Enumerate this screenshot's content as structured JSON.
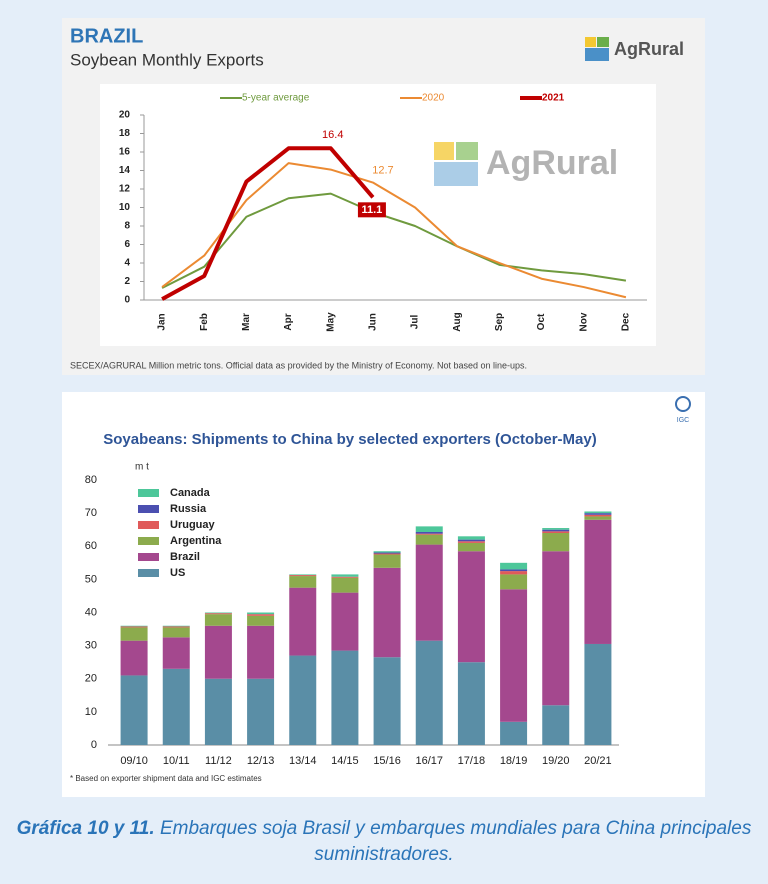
{
  "brand": "AgRural",
  "caption_label": "Gráfica 10 y 11.",
  "caption_text": "Embarques soja Brasil y embarques mundiales para China principales suministradores.",
  "chart_data": [
    {
      "type": "line",
      "title": "BRAZIL",
      "subtitle": "Soybean Monthly Exports",
      "note": "SECEX/AGRURAL  Million metric tons. Official data as provided by the Ministry of Economy. Not based on line-ups.",
      "categories": [
        "Jan",
        "Feb",
        "Mar",
        "Apr",
        "May",
        "Jun",
        "Jul",
        "Aug",
        "Sep",
        "Oct",
        "Nov",
        "Dec"
      ],
      "ylim": [
        0,
        20
      ],
      "yticks": [
        0,
        2,
        4,
        6,
        8,
        10,
        12,
        14,
        16,
        18,
        20
      ],
      "series": [
        {
          "name": "5-year average",
          "color": "#6f9a3e",
          "values": [
            1.3,
            3.6,
            9.0,
            11.0,
            11.5,
            9.5,
            8.0,
            5.8,
            3.8,
            3.2,
            2.8,
            2.1
          ],
          "labeled": []
        },
        {
          "name": "2020",
          "color": "#eb8a32",
          "values": [
            1.4,
            4.8,
            10.8,
            14.8,
            14.1,
            12.7,
            10.0,
            5.8,
            4.0,
            2.3,
            1.4,
            0.3
          ],
          "labeled": [
            5
          ]
        },
        {
          "name": "2021",
          "color": "#c00000",
          "values": [
            0.1,
            2.6,
            12.8,
            16.4,
            16.4,
            11.1,
            null,
            null,
            null,
            null,
            null,
            null
          ],
          "labeled": [
            4,
            5
          ]
        }
      ]
    },
    {
      "type": "stacked_bar",
      "title": "Soyabeans: Shipments to China by selected exporters (October-May)",
      "ylabel": "m t",
      "logo": "IGC",
      "note": "* Based on exporter shipment data and IGC estimates",
      "categories": [
        "09/10",
        "10/11",
        "11/12",
        "12/13",
        "13/14",
        "14/15",
        "15/16",
        "16/17",
        "17/18",
        "18/19",
        "19/20",
        "20/21"
      ],
      "ylim": [
        0,
        80
      ],
      "yticks": [
        0,
        10,
        20,
        30,
        40,
        50,
        60,
        70,
        80
      ],
      "series": [
        {
          "name": "US",
          "color": "#5a8ea6",
          "values": [
            21,
            23,
            20,
            20,
            27,
            28.5,
            26.5,
            31.5,
            25,
            7,
            12,
            30.5
          ]
        },
        {
          "name": "Brazil",
          "color": "#a4488e",
          "values": [
            10.5,
            9.5,
            16,
            16,
            20.5,
            17.5,
            27,
            29,
            33.5,
            40,
            46.5,
            37.5
          ]
        },
        {
          "name": "Argentina",
          "color": "#8cab4d",
          "values": [
            4,
            3,
            3.5,
            3,
            3.5,
            4.5,
            4,
            3,
            2.5,
            4.5,
            5.5,
            1
          ]
        },
        {
          "name": "Uruguay",
          "color": "#e05a5a",
          "values": [
            0.3,
            0.3,
            0.3,
            0.5,
            0.3,
            0.3,
            0.3,
            0.3,
            0.5,
            1,
            0.5,
            0.5
          ]
        },
        {
          "name": "Russia",
          "color": "#4b4fb0",
          "values": [
            0,
            0,
            0,
            0,
            0,
            0,
            0.3,
            0.5,
            0.5,
            0.5,
            0.5,
            0.5
          ]
        },
        {
          "name": "Canada",
          "color": "#4dc79a",
          "values": [
            0.2,
            0.2,
            0.2,
            0.5,
            0.2,
            0.7,
            0.4,
            1.7,
            1,
            2,
            0.5,
            0.5
          ]
        }
      ]
    }
  ]
}
